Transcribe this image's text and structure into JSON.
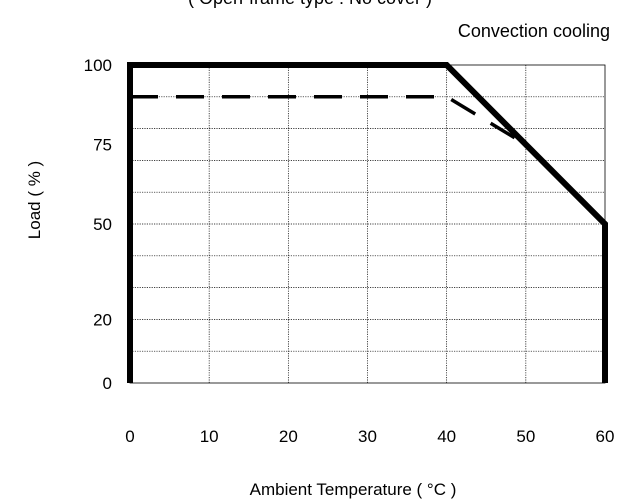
{
  "chart_data": {
    "type": "line",
    "top_note": "( Open-frame type : No cover )",
    "subtitle": "Convection cooling",
    "xlabel": "Ambient Temperature ( °C )",
    "ylabel": "Load ( % )",
    "xlim": [
      0,
      60
    ],
    "ylim": [
      0,
      100
    ],
    "x_ticks": [
      "0",
      "10",
      "20",
      "30",
      "40",
      "50",
      "60"
    ],
    "y_ticks": [
      "100",
      "75",
      "50",
      "20",
      "0"
    ],
    "grid": true,
    "series": [
      {
        "style": "solid",
        "color": "#000000",
        "points": [
          [
            0,
            0
          ],
          [
            0,
            100
          ],
          [
            40,
            100
          ],
          [
            60,
            50
          ],
          [
            60,
            0
          ]
        ]
      },
      {
        "style": "dashed",
        "color": "#000000",
        "points": [
          [
            0,
            90
          ],
          [
            40,
            90
          ],
          [
            50,
            75
          ]
        ]
      }
    ]
  }
}
